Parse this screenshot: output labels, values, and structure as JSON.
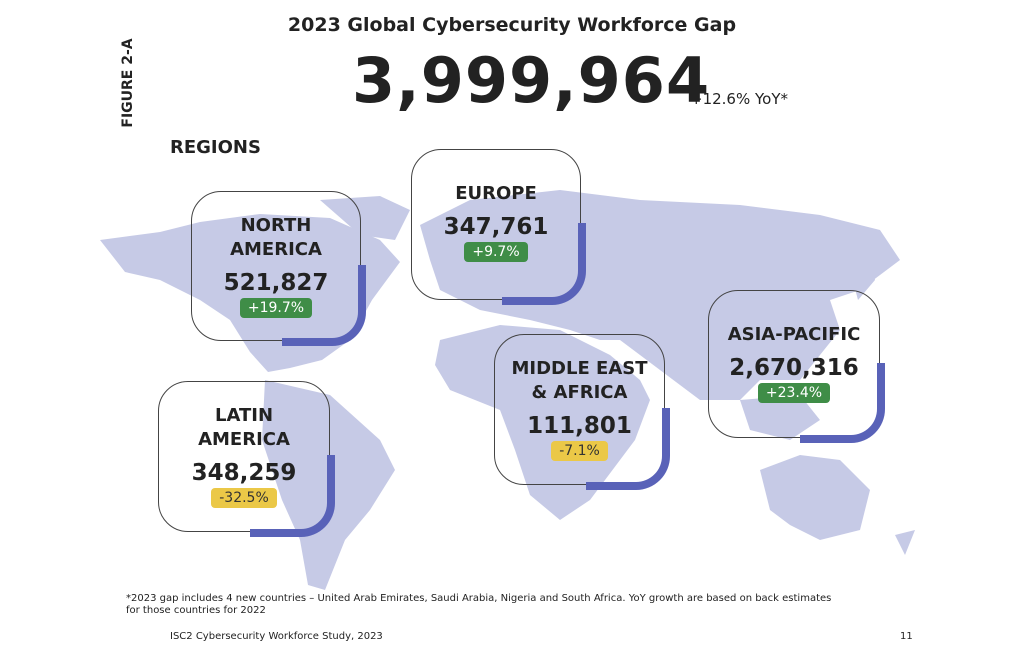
{
  "figure_label": "FIGURE 2-A",
  "title": "2023 Global Cybersecurity Workforce Gap",
  "total": "3,999,964",
  "total_change": "+12.6% YoY*",
  "regions_heading": "REGIONS",
  "regions": [
    {
      "name": "NORTH AMERICA",
      "value": "521,827",
      "change": "+19.7%",
      "badge_color": "#3f8d47",
      "badge_text_color": "#ffffff"
    },
    {
      "name": "EUROPE",
      "value": "347,761",
      "change": "+9.7%",
      "badge_color": "#3f8d47",
      "badge_text_color": "#ffffff"
    },
    {
      "name": "MIDDLE EAST & AFRICA",
      "value": "111,801",
      "change": "-7.1%",
      "badge_color": "#ebc847",
      "badge_text_color": "#333333"
    },
    {
      "name": "ASIA-PACIFIC",
      "value": "2,670,316",
      "change": "+23.4%",
      "badge_color": "#3f8d47",
      "badge_text_color": "#ffffff"
    },
    {
      "name": "LATIN AMERICA",
      "value": "348,259",
      "change": "-32.5%",
      "badge_color": "#ebc847",
      "badge_text_color": "#333333"
    }
  ],
  "footnote": "*2023 gap includes 4 new countries – United Arab Emirates, Saudi Arabia, Nigeria and South Africa. YoY growth are based on back estimates for those countries for 2022",
  "footer": {
    "source": "ISC2 Cybersecurity Workforce Study, 2023",
    "page": "11"
  }
}
